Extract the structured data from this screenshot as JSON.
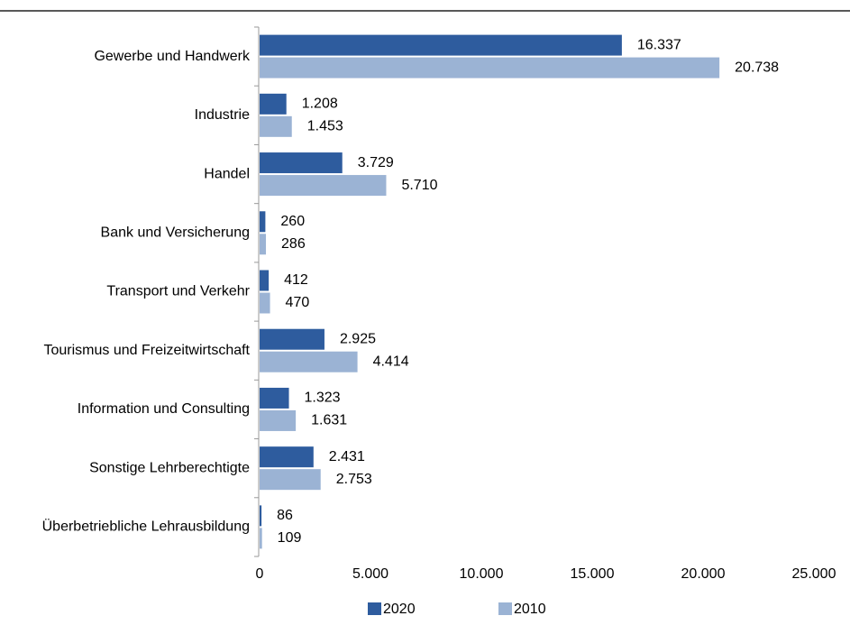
{
  "chart_data": {
    "type": "bar",
    "orientation": "horizontal",
    "categories": [
      "Gewerbe und Handwerk",
      "Industrie",
      "Handel",
      "Bank und Versicherung",
      "Transport und Verkehr",
      "Tourismus und Freizeitwirtschaft",
      "Information und Consulting",
      "Sonstige Lehrberechtigte",
      "Überbetriebliche Lehrausbildung"
    ],
    "series": [
      {
        "name": "2020",
        "color": "#2e5c9e",
        "values": [
          16337,
          1208,
          3729,
          260,
          412,
          2925,
          1323,
          2431,
          86
        ],
        "value_labels": [
          "16.337",
          "1.208",
          "3.729",
          "260",
          "412",
          "2.925",
          "1.323",
          "2.431",
          "86"
        ]
      },
      {
        "name": "2010",
        "color": "#9bb3d4",
        "values": [
          20738,
          1453,
          5710,
          286,
          470,
          4414,
          1631,
          2753,
          109
        ],
        "value_labels": [
          "20.738",
          "1.453",
          "5.710",
          "286",
          "470",
          "4.414",
          "1.631",
          "2.753",
          "109"
        ]
      }
    ],
    "xlim": [
      0,
      25000
    ],
    "xticks": [
      0,
      {
        "value": 5000,
        "label": "5.000"
      },
      {
        "value": 10000,
        "label": "10.000"
      },
      {
        "value": 15000,
        "label": "15.000"
      },
      {
        "value": 20000,
        "label": "20.000"
      },
      {
        "value": 25000,
        "label": "25.000"
      }
    ],
    "legend": "bottom"
  }
}
